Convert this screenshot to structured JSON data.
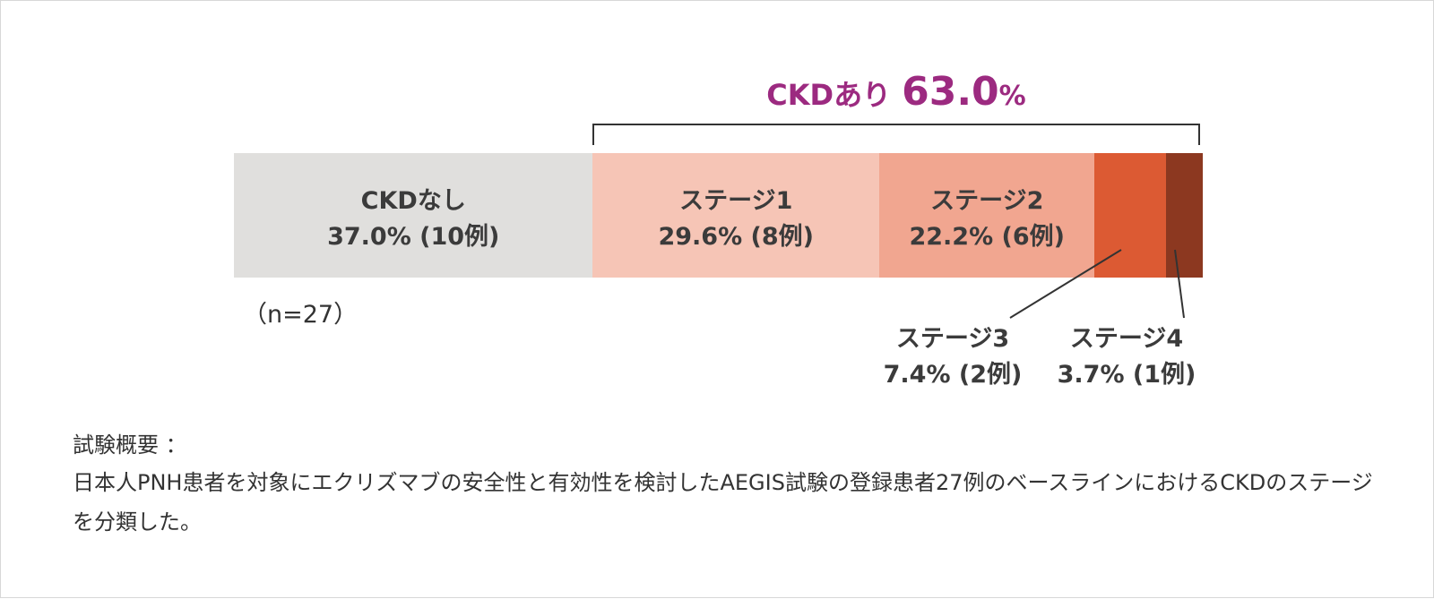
{
  "chart_data": {
    "type": "bar",
    "orientation": "horizontal",
    "stacked": true,
    "n_label": "（n=27）",
    "group_label": "CKDあり",
    "group_value": "63.0",
    "group_unit": "%",
    "segments": [
      {
        "name": "CKDなし",
        "value": 37.0,
        "count": 10,
        "value_label": "37.0% (10例)",
        "color": "#e0dfdd",
        "label_position": "inside"
      },
      {
        "name": "ステージ1",
        "value": 29.6,
        "count": 8,
        "value_label": "29.6% (8例)",
        "color": "#f6c5b6",
        "label_position": "inside"
      },
      {
        "name": "ステージ2",
        "value": 22.2,
        "count": 6,
        "value_label": "22.2% (6例)",
        "color": "#f1a690",
        "label_position": "inside"
      },
      {
        "name": "ステージ3",
        "value": 7.4,
        "count": 2,
        "value_label": "7.4% (2例)",
        "color": "#dc5a33",
        "label_position": "below"
      },
      {
        "name": "ステージ4",
        "value": 3.7,
        "count": 1,
        "value_label": "3.7% (1例)",
        "color": "#8c3820",
        "label_position": "below"
      }
    ]
  },
  "colors": {
    "accent": "#9c2a80",
    "text": "#3b3b3b"
  },
  "summary": {
    "title": "試験概要 ：",
    "body": "日本人PNH患者を対象にエクリズマブの安全性と有効性を検討したAEGIS試験の登録患者27例のベースラインにおけるCKDのステージを分類した。"
  }
}
